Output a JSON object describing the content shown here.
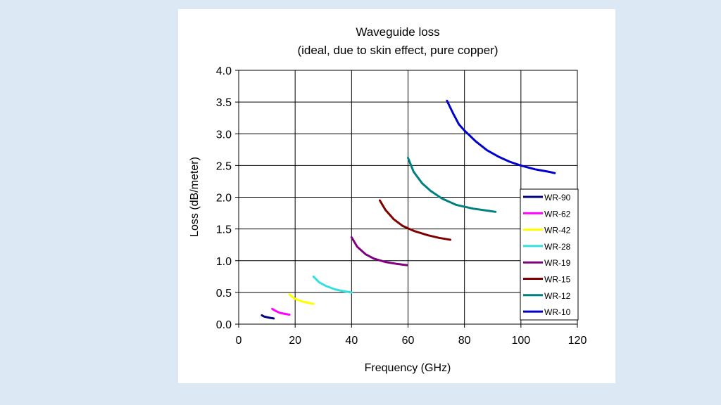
{
  "chart_data": {
    "type": "line",
    "title": "Waveguide loss",
    "subtitle": "(ideal, due to skin effect, pure copper)",
    "xlabel": "Frequency (GHz)",
    "ylabel": "Loss (dB/meter)",
    "xlim": [
      0,
      120
    ],
    "ylim": [
      0,
      4.0
    ],
    "xticks": [
      "0",
      "20",
      "40",
      "60",
      "80",
      "100",
      "120"
    ],
    "yticks": [
      "0.0",
      "0.5",
      "1.0",
      "1.5",
      "2.0",
      "2.5",
      "3.0",
      "3.5",
      "4.0"
    ],
    "grid": true,
    "legend_position": "right",
    "series": [
      {
        "name": "WR-90",
        "color": "#000080",
        "points": [
          [
            8.2,
            0.14
          ],
          [
            9,
            0.12
          ],
          [
            10,
            0.11
          ],
          [
            11,
            0.1
          ],
          [
            12.4,
            0.09
          ]
        ]
      },
      {
        "name": "WR-62",
        "color": "#ff00ff",
        "points": [
          [
            11.9,
            0.24
          ],
          [
            13,
            0.21
          ],
          [
            14.5,
            0.18
          ],
          [
            16,
            0.165
          ],
          [
            18,
            0.15
          ]
        ]
      },
      {
        "name": "WR-42",
        "color": "#ffff00",
        "points": [
          [
            18,
            0.47
          ],
          [
            19.5,
            0.41
          ],
          [
            21,
            0.38
          ],
          [
            23,
            0.35
          ],
          [
            26.5,
            0.32
          ]
        ]
      },
      {
        "name": "WR-28",
        "color": "#33e0e0",
        "points": [
          [
            26.5,
            0.75
          ],
          [
            28.5,
            0.66
          ],
          [
            31,
            0.6
          ],
          [
            34,
            0.55
          ],
          [
            37,
            0.52
          ],
          [
            40,
            0.5
          ]
        ]
      },
      {
        "name": "WR-19",
        "color": "#800080",
        "points": [
          [
            40,
            1.37
          ],
          [
            42,
            1.22
          ],
          [
            45,
            1.1
          ],
          [
            48,
            1.03
          ],
          [
            52,
            0.98
          ],
          [
            56,
            0.95
          ],
          [
            59.6,
            0.93
          ]
        ]
      },
      {
        "name": "WR-15",
        "color": "#800000",
        "points": [
          [
            50,
            1.95
          ],
          [
            52,
            1.8
          ],
          [
            55,
            1.65
          ],
          [
            58,
            1.55
          ],
          [
            62,
            1.47
          ],
          [
            67,
            1.4
          ],
          [
            71,
            1.36
          ],
          [
            75,
            1.33
          ]
        ]
      },
      {
        "name": "WR-12",
        "color": "#008080",
        "points": [
          [
            60,
            2.62
          ],
          [
            62,
            2.4
          ],
          [
            65,
            2.22
          ],
          [
            68,
            2.1
          ],
          [
            72,
            1.98
          ],
          [
            77,
            1.88
          ],
          [
            83,
            1.82
          ],
          [
            88,
            1.79
          ],
          [
            91,
            1.77
          ]
        ]
      },
      {
        "name": "WR-10",
        "color": "#0000cc",
        "points": [
          [
            73.8,
            3.52
          ],
          [
            76,
            3.32
          ],
          [
            78,
            3.15
          ],
          [
            80,
            3.05
          ],
          [
            84,
            2.88
          ],
          [
            88,
            2.74
          ],
          [
            92,
            2.64
          ],
          [
            96,
            2.56
          ],
          [
            100,
            2.5
          ],
          [
            105,
            2.44
          ],
          [
            110,
            2.4
          ],
          [
            112,
            2.38
          ]
        ]
      }
    ]
  }
}
